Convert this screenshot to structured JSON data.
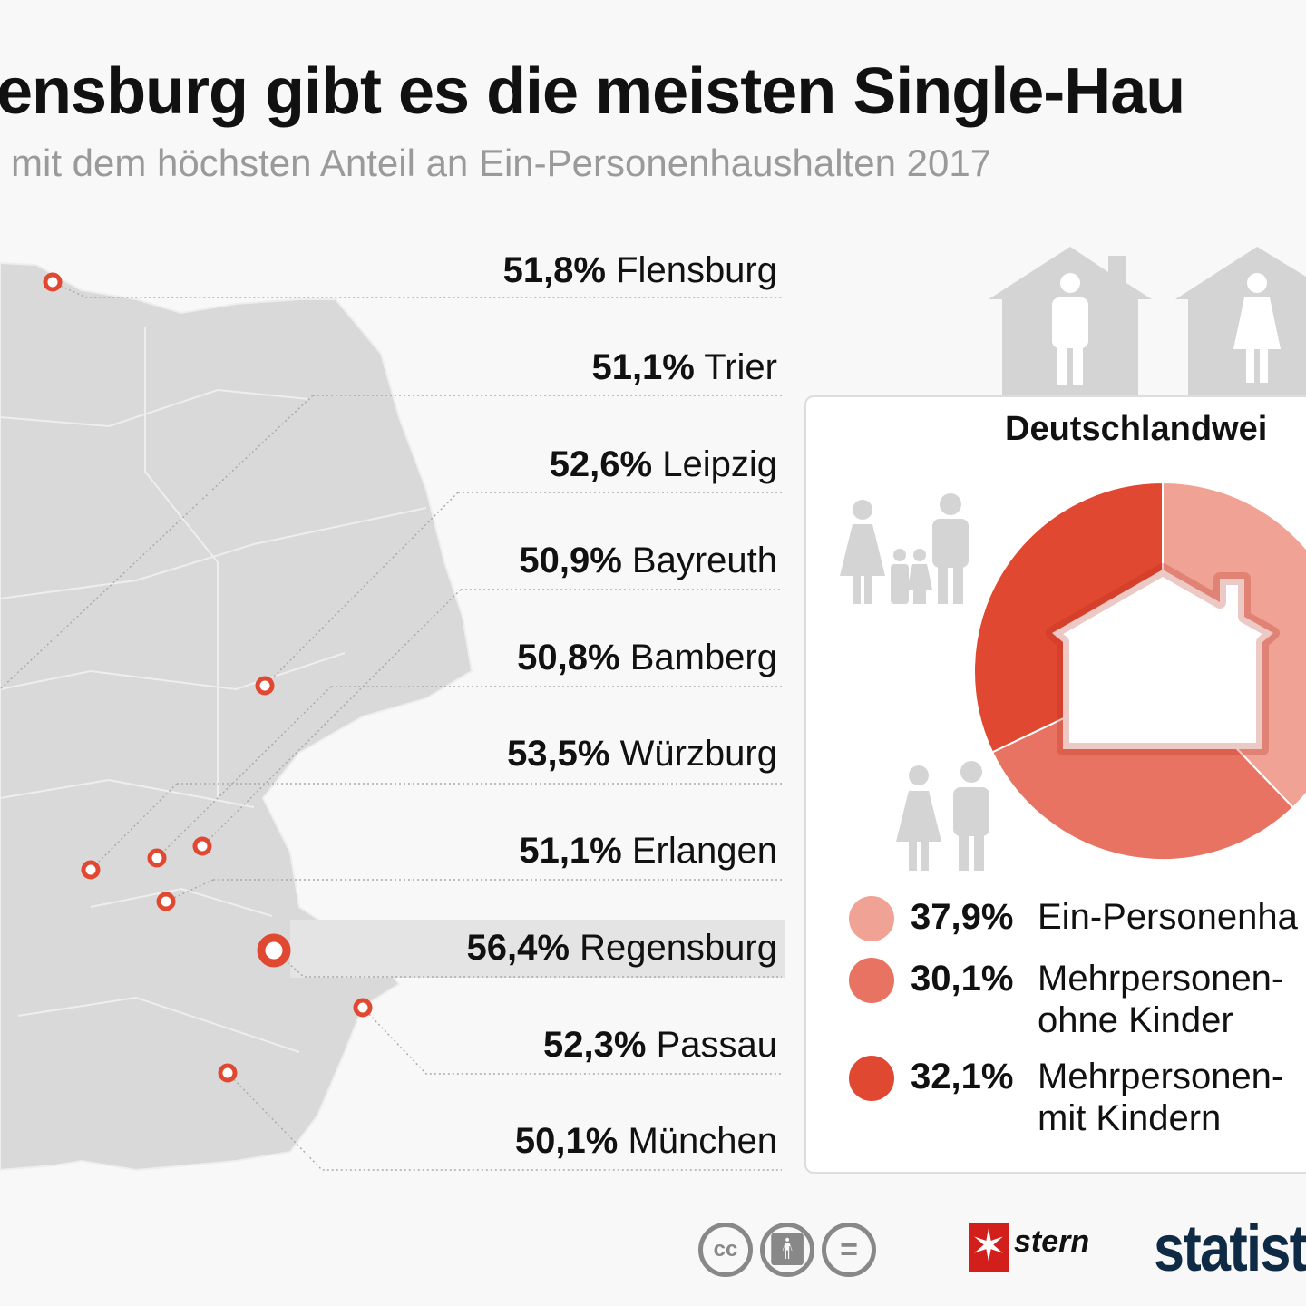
{
  "title": "ensburg gibt es die meisten Single-Hau",
  "subtitle": "mit dem höchsten Anteil an Ein-Personenhaushalten 2017",
  "colors": {
    "light": "#f0a294",
    "mid": "#e97362",
    "dark": "#e04832",
    "map": "#d9d9d9",
    "marker": "#e04832"
  },
  "cities": [
    {
      "pct": "51,8%",
      "name": "Flensburg"
    },
    {
      "pct": "51,1%",
      "name": "Trier"
    },
    {
      "pct": "52,6%",
      "name": "Leipzig"
    },
    {
      "pct": "50,9%",
      "name": "Bayreuth"
    },
    {
      "pct": "50,8%",
      "name": "Bamberg"
    },
    {
      "pct": "53,5%",
      "name": "Würzburg"
    },
    {
      "pct": "51,1%",
      "name": "Erlangen"
    },
    {
      "pct": "56,4%",
      "name": "Regensburg"
    },
    {
      "pct": "52,3%",
      "name": "Passau"
    },
    {
      "pct": "50,1%",
      "name": "München"
    }
  ],
  "box": {
    "title": "Deutschlandwei"
  },
  "legend": [
    {
      "pct": "37,9%",
      "label": "Ein-Personenha"
    },
    {
      "pct": "30,1%",
      "label": "Mehrpersonen-",
      "label2": "ohne Kinder"
    },
    {
      "pct": "32,1%",
      "label": "Mehrpersonen-",
      "label2": "mit Kindern"
    }
  ],
  "chart_data": {
    "type": "pie",
    "title": "Deutschlandweit",
    "categories": [
      "Ein-Personenhaushalte",
      "Mehrpersonenhaushalte ohne Kinder",
      "Mehrpersonenhaushalte mit Kindern"
    ],
    "values": [
      37.9,
      30.1,
      32.1
    ],
    "bar_list": {
      "categories": [
        "Flensburg",
        "Trier",
        "Leipzig",
        "Bayreuth",
        "Bamberg",
        "Würzburg",
        "Erlangen",
        "Regensburg",
        "Passau",
        "München"
      ],
      "values": [
        51.8,
        51.1,
        52.6,
        50.9,
        50.8,
        53.5,
        51.1,
        56.4,
        52.3,
        50.1
      ],
      "unit": "%"
    }
  },
  "footer": {
    "license": "cc",
    "cc_text": "cc",
    "brand1": "stern",
    "brand2": "statist"
  }
}
